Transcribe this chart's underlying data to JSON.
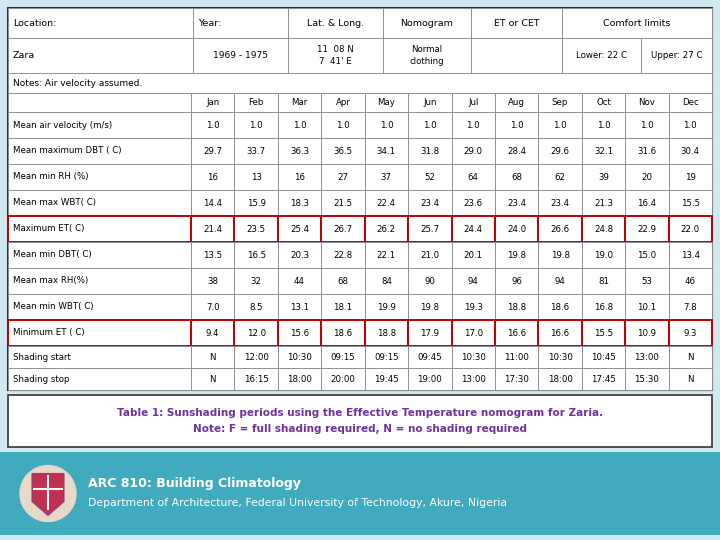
{
  "notes": "Notes: Air velocity assumed.",
  "col_headers": [
    "",
    "Jan",
    "Feb",
    "Mar",
    "Apr",
    "May",
    "Jun",
    "Jul",
    "Aug",
    "Sep",
    "Oct",
    "Nov",
    "Dec"
  ],
  "data_rows": [
    [
      "Mean air velocity (m/s)",
      "1.0",
      "1.0",
      "1.0",
      "1.0",
      "1.0",
      "1.0",
      "1.0",
      "1.0",
      "1.0",
      "1.0",
      "1.0",
      "1.0"
    ],
    [
      "Mean maximum DBT ( C)",
      "29.7",
      "33.7",
      "36.3",
      "36.5",
      "34.1",
      "31.8",
      "29.0",
      "28.4",
      "29.6",
      "32.1",
      "31.6",
      "30.4"
    ],
    [
      "Mean min RH (%)",
      "16",
      "13",
      "16",
      "27",
      "37",
      "52",
      "64",
      "68",
      "62",
      "39",
      "20",
      "19"
    ],
    [
      "Mean max WBT( C)",
      "14.4",
      "15.9",
      "18.3",
      "21.5",
      "22.4",
      "23.4",
      "23.6",
      "23.4",
      "23.4",
      "21.3",
      "16.4",
      "15.5"
    ],
    [
      "Maximum ET( C)",
      "21.4",
      "23.5",
      "25.4",
      "26.7",
      "26.2",
      "25.7",
      "24.4",
      "24.0",
      "26.6",
      "24.8",
      "22.9",
      "22.0"
    ],
    [
      "Mean min DBT( C)",
      "13.5",
      "16.5",
      "20.3",
      "22.8",
      "22.1",
      "21.0",
      "20.1",
      "19.8",
      "19.8",
      "19.0",
      "15.0",
      "13.4"
    ],
    [
      "Mean max RH(%)",
      "38",
      "32",
      "44",
      "68",
      "84",
      "90",
      "94",
      "96",
      "94",
      "81",
      "53",
      "46"
    ],
    [
      "Mean min WBT( C)",
      "7.0",
      "8.5",
      "13.1",
      "18.1",
      "19.9",
      "19.8",
      "19.3",
      "18.8",
      "18.6",
      "16.8",
      "10.1",
      "7.8"
    ],
    [
      "Minimum ET ( C)",
      "9.4",
      "12.0",
      "15.6",
      "18.6",
      "18.8",
      "17.9",
      "17.0",
      "16.6",
      "16.6",
      "15.5",
      "10.9",
      "9.3"
    ],
    [
      "Shading start",
      "N",
      "12:00",
      "10:30",
      "09:15",
      "09:15",
      "09:45",
      "10:30",
      "11:00",
      "10:30",
      "10:45",
      "13:00",
      "N"
    ],
    [
      "Shading stop",
      "N",
      "16:15",
      "18:00",
      "20:00",
      "19:45",
      "19:00",
      "13:00",
      "17:30",
      "18:00",
      "17:45",
      "15:30",
      "N"
    ]
  ],
  "highlighted_rows": [
    4,
    8
  ],
  "caption_line1": "Table 1: Sunshading periods using the Effective Temperature nomogram for Zaria.",
  "caption_line2": "Note: F = full shading required, N = no shading required",
  "footer_text1": "ARC 810: Building Climatology",
  "footer_text2": "Department of Architecture, Federal University of Technology, Akure, Nigeria",
  "bg_color": "#d0e8f0",
  "table_bg": "#ffffff",
  "footer_bg": "#40aabf",
  "caption_color": "#7030a0",
  "highlight_border": "#c00000",
  "normal_border": "#888888",
  "outer_border": "#333333",
  "header1_row1": [
    "Location:",
    "Year:",
    "Lat. & Long.",
    "Nomogram",
    "ET or CET",
    "Comfort limits"
  ],
  "header1_row2": [
    "Zara",
    "1969 - 1975",
    "11  08 N\n7  41' E",
    "Normal\nclothing",
    "",
    ""
  ],
  "header_lower": "Lower: 22 C",
  "header_upper": "Upper: 27 C"
}
